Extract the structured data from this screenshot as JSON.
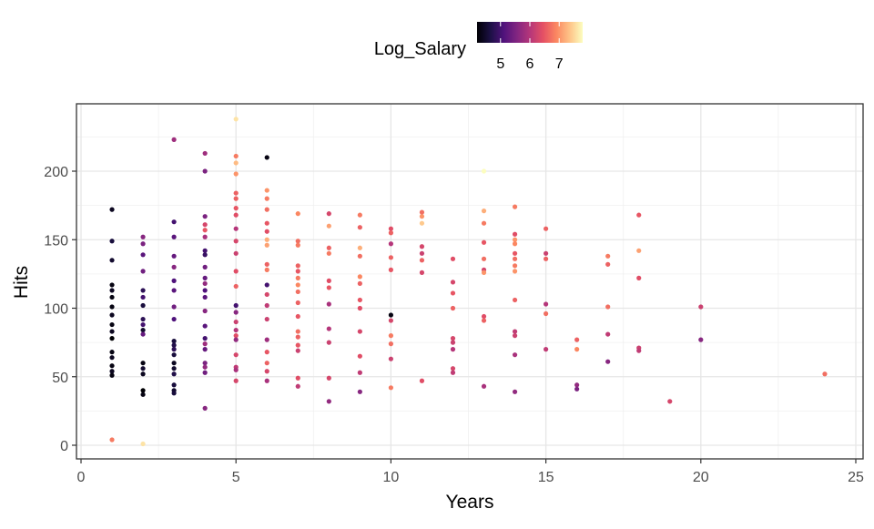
{
  "chart_data": {
    "type": "scatter",
    "title": "",
    "xlabel": "Years",
    "ylabel": "Hits",
    "xlim": [
      0,
      25
    ],
    "ylim": [
      -10,
      248
    ],
    "xticks": [
      0,
      5,
      10,
      15,
      20,
      25
    ],
    "yticks": [
      0,
      50,
      100,
      150,
      200
    ],
    "grid": true,
    "legend": {
      "title": "Log_Salary",
      "placement": "top",
      "type": "colorbar",
      "range": [
        4.2,
        7.8
      ],
      "ticks": [
        5,
        6,
        7
      ],
      "palette": "magma"
    },
    "color_variable": "Log_Salary",
    "points": [
      {
        "x": 1,
        "y": 172,
        "c": 4.4
      },
      {
        "x": 1,
        "y": 149,
        "c": 4.6
      },
      {
        "x": 1,
        "y": 135,
        "c": 4.5
      },
      {
        "x": 1,
        "y": 117,
        "c": 4.3
      },
      {
        "x": 1,
        "y": 113,
        "c": 4.4
      },
      {
        "x": 1,
        "y": 108,
        "c": 4.3
      },
      {
        "x": 1,
        "y": 101,
        "c": 4.3
      },
      {
        "x": 1,
        "y": 95,
        "c": 4.4
      },
      {
        "x": 1,
        "y": 88,
        "c": 4.3
      },
      {
        "x": 1,
        "y": 83,
        "c": 4.4
      },
      {
        "x": 1,
        "y": 78,
        "c": 4.2
      },
      {
        "x": 1,
        "y": 68,
        "c": 4.3
      },
      {
        "x": 1,
        "y": 64,
        "c": 4.4
      },
      {
        "x": 1,
        "y": 58,
        "c": 4.3
      },
      {
        "x": 1,
        "y": 54,
        "c": 4.4
      },
      {
        "x": 1,
        "y": 51,
        "c": 4.3
      },
      {
        "x": 1,
        "y": 4,
        "c": 6.8
      },
      {
        "x": 2,
        "y": 152,
        "c": 5.6
      },
      {
        "x": 2,
        "y": 147,
        "c": 5.5
      },
      {
        "x": 2,
        "y": 139,
        "c": 5.2
      },
      {
        "x": 2,
        "y": 127,
        "c": 5.4
      },
      {
        "x": 2,
        "y": 113,
        "c": 4.8
      },
      {
        "x": 2,
        "y": 108,
        "c": 5.0
      },
      {
        "x": 2,
        "y": 102,
        "c": 4.6
      },
      {
        "x": 2,
        "y": 92,
        "c": 4.8
      },
      {
        "x": 2,
        "y": 88,
        "c": 5.0
      },
      {
        "x": 2,
        "y": 84,
        "c": 4.5
      },
      {
        "x": 2,
        "y": 81,
        "c": 5.3
      },
      {
        "x": 2,
        "y": 60,
        "c": 4.3
      },
      {
        "x": 2,
        "y": 56,
        "c": 4.5
      },
      {
        "x": 2,
        "y": 52,
        "c": 4.4
      },
      {
        "x": 2,
        "y": 40,
        "c": 4.2
      },
      {
        "x": 2,
        "y": 37,
        "c": 4.3
      },
      {
        "x": 2,
        "y": 1,
        "c": 7.6
      },
      {
        "x": 3,
        "y": 223,
        "c": 5.8
      },
      {
        "x": 3,
        "y": 163,
        "c": 5.0
      },
      {
        "x": 3,
        "y": 152,
        "c": 5.2
      },
      {
        "x": 3,
        "y": 138,
        "c": 5.3
      },
      {
        "x": 3,
        "y": 130,
        "c": 5.6
      },
      {
        "x": 3,
        "y": 120,
        "c": 5.1
      },
      {
        "x": 3,
        "y": 113,
        "c": 5.2
      },
      {
        "x": 3,
        "y": 101,
        "c": 5.4
      },
      {
        "x": 3,
        "y": 92,
        "c": 5.1
      },
      {
        "x": 3,
        "y": 76,
        "c": 4.6
      },
      {
        "x": 3,
        "y": 73,
        "c": 4.7
      },
      {
        "x": 3,
        "y": 70,
        "c": 4.8
      },
      {
        "x": 3,
        "y": 66,
        "c": 4.6
      },
      {
        "x": 3,
        "y": 60,
        "c": 4.4
      },
      {
        "x": 3,
        "y": 56,
        "c": 4.5
      },
      {
        "x": 3,
        "y": 52,
        "c": 4.7
      },
      {
        "x": 3,
        "y": 44,
        "c": 4.6
      },
      {
        "x": 3,
        "y": 40,
        "c": 4.5
      },
      {
        "x": 3,
        "y": 38,
        "c": 4.6
      },
      {
        "x": 4,
        "y": 213,
        "c": 5.8
      },
      {
        "x": 4,
        "y": 200,
        "c": 5.5
      },
      {
        "x": 4,
        "y": 167,
        "c": 5.5
      },
      {
        "x": 4,
        "y": 161,
        "c": 6.3
      },
      {
        "x": 4,
        "y": 157,
        "c": 6.5
      },
      {
        "x": 4,
        "y": 152,
        "c": 5.9
      },
      {
        "x": 4,
        "y": 142,
        "c": 5.0
      },
      {
        "x": 4,
        "y": 139,
        "c": 4.9
      },
      {
        "x": 4,
        "y": 130,
        "c": 5.4
      },
      {
        "x": 4,
        "y": 122,
        "c": 5.3
      },
      {
        "x": 4,
        "y": 118,
        "c": 5.7
      },
      {
        "x": 4,
        "y": 113,
        "c": 5.1
      },
      {
        "x": 4,
        "y": 108,
        "c": 5.2
      },
      {
        "x": 4,
        "y": 98,
        "c": 5.6
      },
      {
        "x": 4,
        "y": 87,
        "c": 5.2
      },
      {
        "x": 4,
        "y": 78,
        "c": 5.0
      },
      {
        "x": 4,
        "y": 74,
        "c": 5.8
      },
      {
        "x": 4,
        "y": 70,
        "c": 5.3
      },
      {
        "x": 4,
        "y": 60,
        "c": 5.5
      },
      {
        "x": 4,
        "y": 57,
        "c": 5.7
      },
      {
        "x": 4,
        "y": 53,
        "c": 5.4
      },
      {
        "x": 4,
        "y": 27,
        "c": 5.6
      },
      {
        "x": 5,
        "y": 238,
        "c": 7.6
      },
      {
        "x": 5,
        "y": 211,
        "c": 6.8
      },
      {
        "x": 5,
        "y": 206,
        "c": 7.3
      },
      {
        "x": 5,
        "y": 198,
        "c": 7.0
      },
      {
        "x": 5,
        "y": 184,
        "c": 6.6
      },
      {
        "x": 5,
        "y": 180,
        "c": 6.6
      },
      {
        "x": 5,
        "y": 173,
        "c": 6.5
      },
      {
        "x": 5,
        "y": 168,
        "c": 6.4
      },
      {
        "x": 5,
        "y": 158,
        "c": 6.0
      },
      {
        "x": 5,
        "y": 149,
        "c": 6.3
      },
      {
        "x": 5,
        "y": 140,
        "c": 6.2
      },
      {
        "x": 5,
        "y": 127,
        "c": 6.4
      },
      {
        "x": 5,
        "y": 116,
        "c": 6.6
      },
      {
        "x": 5,
        "y": 102,
        "c": 5.0
      },
      {
        "x": 5,
        "y": 97,
        "c": 5.6
      },
      {
        "x": 5,
        "y": 90,
        "c": 6.2
      },
      {
        "x": 5,
        "y": 84,
        "c": 6.0
      },
      {
        "x": 5,
        "y": 80,
        "c": 6.4
      },
      {
        "x": 5,
        "y": 77,
        "c": 5.7
      },
      {
        "x": 5,
        "y": 66,
        "c": 6.3
      },
      {
        "x": 5,
        "y": 57,
        "c": 6.1
      },
      {
        "x": 5,
        "y": 55,
        "c": 5.9
      },
      {
        "x": 5,
        "y": 47,
        "c": 6.3
      },
      {
        "x": 6,
        "y": 210,
        "c": 4.3
      },
      {
        "x": 6,
        "y": 186,
        "c": 7.0
      },
      {
        "x": 6,
        "y": 180,
        "c": 6.8
      },
      {
        "x": 6,
        "y": 172,
        "c": 6.7
      },
      {
        "x": 6,
        "y": 162,
        "c": 6.5
      },
      {
        "x": 6,
        "y": 156,
        "c": 6.4
      },
      {
        "x": 6,
        "y": 150,
        "c": 7.2
      },
      {
        "x": 6,
        "y": 146,
        "c": 7.1
      },
      {
        "x": 6,
        "y": 132,
        "c": 6.6
      },
      {
        "x": 6,
        "y": 128,
        "c": 6.8
      },
      {
        "x": 6,
        "y": 117,
        "c": 5.0
      },
      {
        "x": 6,
        "y": 110,
        "c": 6.3
      },
      {
        "x": 6,
        "y": 102,
        "c": 6.1
      },
      {
        "x": 6,
        "y": 92,
        "c": 6.2
      },
      {
        "x": 6,
        "y": 77,
        "c": 5.8
      },
      {
        "x": 6,
        "y": 68,
        "c": 6.5
      },
      {
        "x": 6,
        "y": 60,
        "c": 6.6
      },
      {
        "x": 6,
        "y": 54,
        "c": 6.3
      },
      {
        "x": 6,
        "y": 47,
        "c": 5.9
      },
      {
        "x": 7,
        "y": 169,
        "c": 6.9
      },
      {
        "x": 7,
        "y": 149,
        "c": 6.7
      },
      {
        "x": 7,
        "y": 146,
        "c": 6.8
      },
      {
        "x": 7,
        "y": 131,
        "c": 6.6
      },
      {
        "x": 7,
        "y": 127,
        "c": 6.5
      },
      {
        "x": 7,
        "y": 122,
        "c": 6.8
      },
      {
        "x": 7,
        "y": 117,
        "c": 6.9
      },
      {
        "x": 7,
        "y": 112,
        "c": 6.7
      },
      {
        "x": 7,
        "y": 104,
        "c": 6.6
      },
      {
        "x": 7,
        "y": 94,
        "c": 6.5
      },
      {
        "x": 7,
        "y": 83,
        "c": 6.7
      },
      {
        "x": 7,
        "y": 79,
        "c": 6.6
      },
      {
        "x": 7,
        "y": 73,
        "c": 6.5
      },
      {
        "x": 7,
        "y": 69,
        "c": 6.2
      },
      {
        "x": 7,
        "y": 49,
        "c": 6.4
      },
      {
        "x": 7,
        "y": 43,
        "c": 6.1
      },
      {
        "x": 8,
        "y": 169,
        "c": 6.3
      },
      {
        "x": 8,
        "y": 160,
        "c": 7.1
      },
      {
        "x": 8,
        "y": 144,
        "c": 6.6
      },
      {
        "x": 8,
        "y": 140,
        "c": 6.8
      },
      {
        "x": 8,
        "y": 120,
        "c": 6.4
      },
      {
        "x": 8,
        "y": 115,
        "c": 6.5
      },
      {
        "x": 8,
        "y": 103,
        "c": 5.9
      },
      {
        "x": 8,
        "y": 85,
        "c": 6.0
      },
      {
        "x": 8,
        "y": 75,
        "c": 6.2
      },
      {
        "x": 8,
        "y": 49,
        "c": 6.3
      },
      {
        "x": 8,
        "y": 32,
        "c": 5.7
      },
      {
        "x": 9,
        "y": 168,
        "c": 6.8
      },
      {
        "x": 9,
        "y": 159,
        "c": 6.6
      },
      {
        "x": 9,
        "y": 144,
        "c": 7.2
      },
      {
        "x": 9,
        "y": 138,
        "c": 6.7
      },
      {
        "x": 9,
        "y": 123,
        "c": 6.9
      },
      {
        "x": 9,
        "y": 118,
        "c": 6.6
      },
      {
        "x": 9,
        "y": 106,
        "c": 6.5
      },
      {
        "x": 9,
        "y": 100,
        "c": 6.4
      },
      {
        "x": 9,
        "y": 83,
        "c": 6.3
      },
      {
        "x": 9,
        "y": 65,
        "c": 6.4
      },
      {
        "x": 9,
        "y": 53,
        "c": 6.1
      },
      {
        "x": 9,
        "y": 39,
        "c": 5.6
      },
      {
        "x": 10,
        "y": 158,
        "c": 6.4
      },
      {
        "x": 10,
        "y": 155,
        "c": 6.6
      },
      {
        "x": 10,
        "y": 147,
        "c": 6.0
      },
      {
        "x": 10,
        "y": 137,
        "c": 6.6
      },
      {
        "x": 10,
        "y": 128,
        "c": 6.5
      },
      {
        "x": 10,
        "y": 95,
        "c": 4.3
      },
      {
        "x": 10,
        "y": 91,
        "c": 6.3
      },
      {
        "x": 10,
        "y": 80,
        "c": 6.8
      },
      {
        "x": 10,
        "y": 74,
        "c": 6.7
      },
      {
        "x": 10,
        "y": 63,
        "c": 6.2
      },
      {
        "x": 10,
        "y": 42,
        "c": 6.8
      },
      {
        "x": 11,
        "y": 170,
        "c": 6.7
      },
      {
        "x": 11,
        "y": 167,
        "c": 7.0
      },
      {
        "x": 11,
        "y": 162,
        "c": 7.4
      },
      {
        "x": 11,
        "y": 145,
        "c": 6.3
      },
      {
        "x": 11,
        "y": 140,
        "c": 6.2
      },
      {
        "x": 11,
        "y": 135,
        "c": 6.6
      },
      {
        "x": 11,
        "y": 126,
        "c": 6.3
      },
      {
        "x": 11,
        "y": 47,
        "c": 6.4
      },
      {
        "x": 12,
        "y": 136,
        "c": 6.4
      },
      {
        "x": 12,
        "y": 119,
        "c": 6.3
      },
      {
        "x": 12,
        "y": 111,
        "c": 6.5
      },
      {
        "x": 12,
        "y": 100,
        "c": 6.6
      },
      {
        "x": 12,
        "y": 78,
        "c": 6.3
      },
      {
        "x": 12,
        "y": 75,
        "c": 6.2
      },
      {
        "x": 12,
        "y": 70,
        "c": 6.0
      },
      {
        "x": 12,
        "y": 56,
        "c": 6.3
      },
      {
        "x": 12,
        "y": 53,
        "c": 6.1
      },
      {
        "x": 13,
        "y": 200,
        "c": 7.8
      },
      {
        "x": 13,
        "y": 171,
        "c": 7.2
      },
      {
        "x": 13,
        "y": 162,
        "c": 6.8
      },
      {
        "x": 13,
        "y": 148,
        "c": 6.5
      },
      {
        "x": 13,
        "y": 136,
        "c": 6.7
      },
      {
        "x": 13,
        "y": 128,
        "c": 6.3
      },
      {
        "x": 13,
        "y": 126,
        "c": 7.0
      },
      {
        "x": 13,
        "y": 94,
        "c": 6.4
      },
      {
        "x": 13,
        "y": 91,
        "c": 6.6
      },
      {
        "x": 13,
        "y": 43,
        "c": 5.9
      },
      {
        "x": 14,
        "y": 174,
        "c": 6.8
      },
      {
        "x": 14,
        "y": 154,
        "c": 6.4
      },
      {
        "x": 14,
        "y": 150,
        "c": 7.0
      },
      {
        "x": 14,
        "y": 147,
        "c": 6.9
      },
      {
        "x": 14,
        "y": 140,
        "c": 6.5
      },
      {
        "x": 14,
        "y": 136,
        "c": 6.7
      },
      {
        "x": 14,
        "y": 131,
        "c": 6.8
      },
      {
        "x": 14,
        "y": 127,
        "c": 7.0
      },
      {
        "x": 14,
        "y": 106,
        "c": 6.6
      },
      {
        "x": 14,
        "y": 83,
        "c": 6.1
      },
      {
        "x": 14,
        "y": 80,
        "c": 6.2
      },
      {
        "x": 14,
        "y": 66,
        "c": 5.9
      },
      {
        "x": 14,
        "y": 39,
        "c": 5.7
      },
      {
        "x": 15,
        "y": 158,
        "c": 6.6
      },
      {
        "x": 15,
        "y": 140,
        "c": 6.2
      },
      {
        "x": 15,
        "y": 136,
        "c": 6.6
      },
      {
        "x": 15,
        "y": 103,
        "c": 6.0
      },
      {
        "x": 15,
        "y": 96,
        "c": 6.7
      },
      {
        "x": 15,
        "y": 70,
        "c": 6.1
      },
      {
        "x": 16,
        "y": 77,
        "c": 6.6
      },
      {
        "x": 16,
        "y": 70,
        "c": 6.9
      },
      {
        "x": 16,
        "y": 44,
        "c": 5.7
      },
      {
        "x": 16,
        "y": 41,
        "c": 5.5
      },
      {
        "x": 17,
        "y": 138,
        "c": 6.8
      },
      {
        "x": 17,
        "y": 132,
        "c": 6.6
      },
      {
        "x": 17,
        "y": 101,
        "c": 6.7
      },
      {
        "x": 17,
        "y": 81,
        "c": 6.1
      },
      {
        "x": 17,
        "y": 61,
        "c": 5.6
      },
      {
        "x": 18,
        "y": 168,
        "c": 6.5
      },
      {
        "x": 18,
        "y": 142,
        "c": 7.1
      },
      {
        "x": 18,
        "y": 122,
        "c": 6.4
      },
      {
        "x": 18,
        "y": 71,
        "c": 6.2
      },
      {
        "x": 18,
        "y": 69,
        "c": 6.1
      },
      {
        "x": 19,
        "y": 32,
        "c": 6.3
      },
      {
        "x": 20,
        "y": 101,
        "c": 6.2
      },
      {
        "x": 20,
        "y": 77,
        "c": 5.6
      },
      {
        "x": 24,
        "y": 52,
        "c": 6.7
      }
    ]
  }
}
